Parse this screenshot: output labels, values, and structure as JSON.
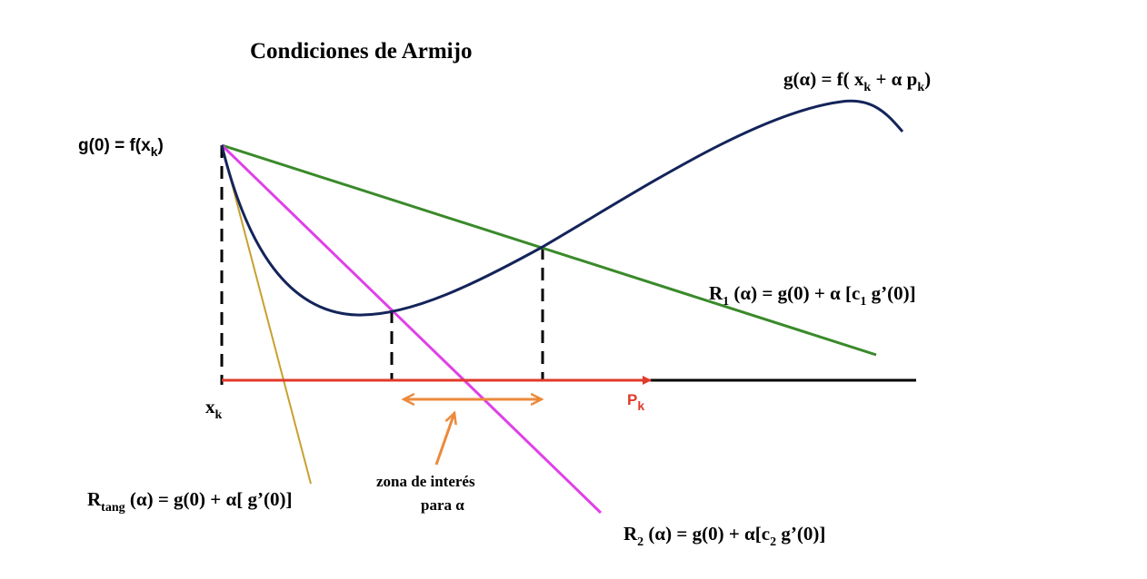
{
  "diagram": {
    "title": "Condiciones de Armijo",
    "curve_label": {
      "main": "g(α) = f( x",
      "sub1": "k",
      "mid": " + α p",
      "sub2": "k",
      "end": ")"
    },
    "g0_label": {
      "main": "g(0) = f(x",
      "sub": "k",
      "end": ")"
    },
    "r1_label": {
      "main": "R",
      "sub": "1",
      "mid": " (α) = g(0) + α [c",
      "sub2": "1",
      "end": " g’(0)]"
    },
    "r2_label": {
      "main": "R",
      "sub": "2",
      "mid": " (α) = g(0) + α[c",
      "sub2": "2",
      "end": " g’(0)]"
    },
    "rtang_label": {
      "main": "R",
      "sub": "tang",
      "end": " (α) = g(0) + α[ g’(0)]"
    },
    "xk_label": {
      "main": "x",
      "sub": "k"
    },
    "pk_label": {
      "main": "P",
      "sub": "k"
    },
    "zone_label": {
      "line1": "zona de interés",
      "line2": "para α"
    },
    "colors": {
      "curve": "#14245a",
      "r1": "#3a8a2a",
      "r2": "#e040e8",
      "tangent": "#c8a030",
      "pk_arrow": "#e03a2a",
      "zone_arrow": "#ec8a3c",
      "axis": "#000000"
    }
  }
}
